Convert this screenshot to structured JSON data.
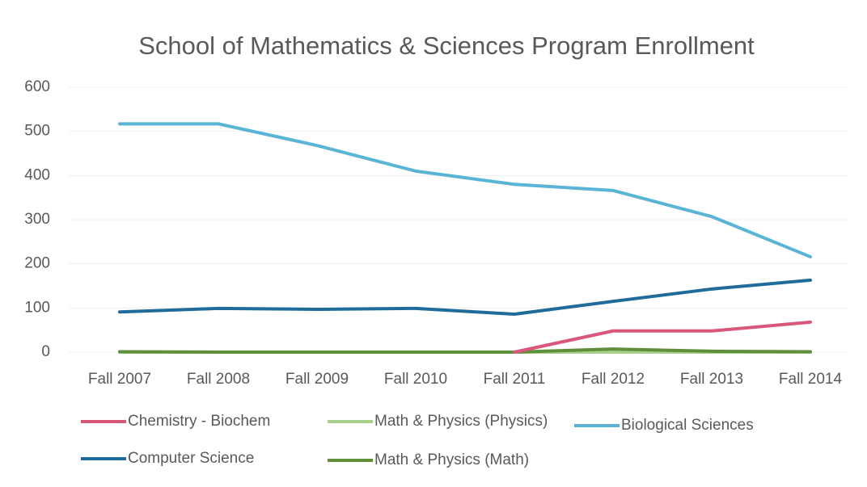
{
  "chart_data": {
    "type": "line",
    "title": "School of Mathematics & Sciences Program Enrollment",
    "categories": [
      "Fall 2007",
      "Fall 2008",
      "Fall 2009",
      "Fall 2010",
      "Fall 2011",
      "Fall 2012",
      "Fall 2013",
      "Fall 2014"
    ],
    "series": [
      {
        "name": "Chemistry - Biochem",
        "color": "#d9577a",
        "values": [
          null,
          null,
          null,
          null,
          0,
          48,
          48,
          68
        ]
      },
      {
        "name": "Math & Physics (Physics)",
        "color": "#a8d08d",
        "values": [
          0,
          0,
          0,
          0,
          0,
          0,
          0,
          0
        ]
      },
      {
        "name": "Biological Sciences",
        "color": "#5ab4d6",
        "values": [
          517,
          517,
          468,
          410,
          380,
          366,
          307,
          216
        ]
      },
      {
        "name": "Computer Science",
        "color": "#1f6b9a",
        "values": [
          91,
          99,
          97,
          99,
          86,
          115,
          143,
          163
        ]
      },
      {
        "name": "Math & Physics (Math)",
        "color": "#5f8f3a",
        "values": [
          1,
          0,
          0,
          0,
          0,
          7,
          2,
          1
        ]
      }
    ],
    "ylim": [
      0,
      600
    ],
    "yticks": [
      0,
      100,
      200,
      300,
      400,
      500,
      600
    ],
    "grid": true
  }
}
